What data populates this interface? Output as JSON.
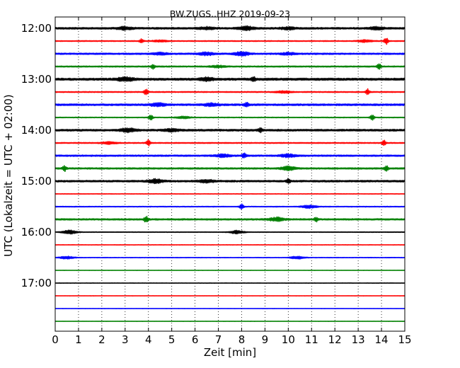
{
  "chart_data": {
    "type": "line",
    "title": "BW.ZUGS..HHZ 2019-09-23",
    "xlabel": "Zeit  [min]",
    "ylabel": "UTC (Lokalzeit = UTC + 02:00)",
    "xlim": [
      0,
      15
    ],
    "x_ticks": [
      "0",
      "1",
      "2",
      "3",
      "4",
      "5",
      "6",
      "7",
      "8",
      "9",
      "10",
      "11",
      "12",
      "13",
      "14",
      "15"
    ],
    "y_tick_labels": [
      "12:00",
      "13:00",
      "14:00",
      "15:00",
      "16:00",
      "17:00"
    ],
    "grid": "vertical dotted",
    "trace_colors": [
      "#000000",
      "#ff0000",
      "#0000ff",
      "#008000"
    ],
    "traces": [
      {
        "start": "12:00",
        "color": "#000000",
        "noise": 1.2,
        "events": [
          [
            3,
            1.8
          ],
          [
            6.5,
            1.5
          ],
          [
            8.2,
            2.2
          ],
          [
            10,
            1.5
          ],
          [
            13.8,
            1.5
          ]
        ]
      },
      {
        "start": "12:15",
        "color": "#ff0000",
        "noise": 0.6,
        "events": [
          [
            3.7,
            3.0
          ],
          [
            14.2,
            4.5
          ],
          [
            4.5,
            1.2
          ],
          [
            13.3,
            1.5
          ]
        ]
      },
      {
        "start": "12:30",
        "color": "#0000ff",
        "noise": 1.0,
        "events": [
          [
            4.5,
            1.5
          ],
          [
            6.5,
            2.0
          ],
          [
            8,
            2.5
          ],
          [
            10,
            1.5
          ]
        ]
      },
      {
        "start": "12:45",
        "color": "#008000",
        "noise": 0.8,
        "events": [
          [
            4.2,
            3.0
          ],
          [
            13.9,
            3.5
          ],
          [
            7,
            1.3
          ]
        ]
      },
      {
        "start": "13:00",
        "color": "#000000",
        "noise": 1.5,
        "events": [
          [
            3,
            2.5
          ],
          [
            8.5,
            3.0
          ],
          [
            6.5,
            1.8
          ]
        ]
      },
      {
        "start": "13:15",
        "color": "#ff0000",
        "noise": 0.7,
        "events": [
          [
            3.9,
            4.0
          ],
          [
            13.4,
            4.0
          ],
          [
            9.8,
            1.5
          ]
        ]
      },
      {
        "start": "13:30",
        "color": "#0000ff",
        "noise": 1.2,
        "events": [
          [
            4.4,
            2.2
          ],
          [
            6.7,
            2.0
          ],
          [
            8.2,
            3.0
          ]
        ]
      },
      {
        "start": "13:45",
        "color": "#008000",
        "noise": 0.5,
        "events": [
          [
            4.1,
            3.5
          ],
          [
            13.6,
            3.5
          ],
          [
            5.5,
            1.5
          ]
        ]
      },
      {
        "start": "14:00",
        "color": "#000000",
        "noise": 1.3,
        "events": [
          [
            3.1,
            2.5
          ],
          [
            5,
            1.5
          ],
          [
            8.8,
            3.0
          ]
        ]
      },
      {
        "start": "14:15",
        "color": "#ff0000",
        "noise": 0.7,
        "events": [
          [
            4,
            4.0
          ],
          [
            14.1,
            4.0
          ],
          [
            2.3,
            1.5
          ]
        ]
      },
      {
        "start": "14:30",
        "color": "#0000ff",
        "noise": 1.0,
        "events": [
          [
            7.2,
            1.8
          ],
          [
            8.1,
            3.5
          ],
          [
            10,
            2.0
          ]
        ]
      },
      {
        "start": "14:45",
        "color": "#008000",
        "noise": 1.0,
        "events": [
          [
            0.4,
            3.5
          ],
          [
            14.2,
            3.5
          ],
          [
            10,
            2.5
          ]
        ]
      },
      {
        "start": "15:00",
        "color": "#000000",
        "noise": 1.2,
        "events": [
          [
            4.3,
            2.5
          ],
          [
            10,
            3.0
          ],
          [
            6.5,
            1.8
          ]
        ]
      },
      {
        "start": "15:15",
        "color": "#ff0000",
        "noise": 0.25,
        "events": []
      },
      {
        "start": "15:30",
        "color": "#0000ff",
        "noise": 0.5,
        "events": [
          [
            8,
            3.5
          ],
          [
            10.9,
            2.2
          ]
        ]
      },
      {
        "start": "15:45",
        "color": "#008000",
        "noise": 1.0,
        "events": [
          [
            3.9,
            4.0
          ],
          [
            9.5,
            2.5
          ],
          [
            11.2,
            3.0
          ]
        ]
      },
      {
        "start": "16:00",
        "color": "#000000",
        "noise": 0.4,
        "events": [
          [
            0.6,
            2.8
          ],
          [
            7.8,
            2.2
          ]
        ]
      },
      {
        "start": "16:15",
        "color": "#ff0000",
        "noise": 0.2,
        "events": []
      },
      {
        "start": "16:30",
        "color": "#0000ff",
        "noise": 0.3,
        "events": [
          [
            0.5,
            1.8
          ],
          [
            10.4,
            2.0
          ]
        ]
      },
      {
        "start": "16:45",
        "color": "#008000",
        "noise": 0.15,
        "events": []
      },
      {
        "start": "17:00",
        "color": "#000000",
        "noise": 0.2,
        "events": []
      },
      {
        "start": "17:15",
        "color": "#ff0000",
        "noise": 0.15,
        "events": []
      },
      {
        "start": "17:30",
        "color": "#0000ff",
        "noise": 0.15,
        "events": []
      },
      {
        "start": "17:45",
        "color": "#008000",
        "noise": 0.15,
        "events": []
      }
    ]
  }
}
